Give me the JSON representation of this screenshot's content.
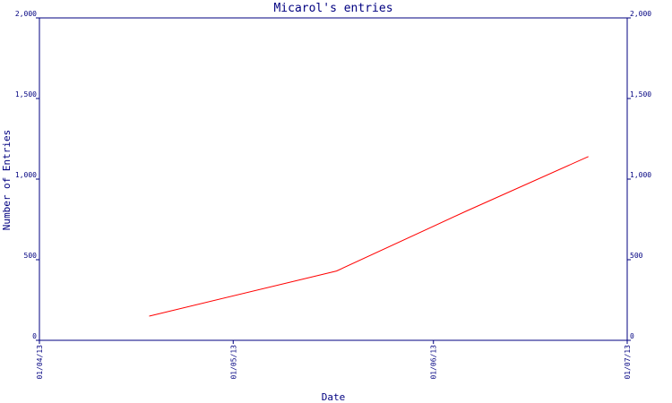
{
  "colors": {
    "axis": "#000080",
    "series_line": "#ff0000",
    "background": "#ffffff"
  },
  "chart_data": {
    "type": "line",
    "title": "Micarol's entries",
    "xlabel": "Date",
    "ylabel": "Number of Entries",
    "xlim": [
      "2013-04-01",
      "2013-07-01"
    ],
    "ylim": [
      0,
      2000
    ],
    "grid": false,
    "legend": "none",
    "x_ticks": [
      "2013-04-01",
      "2013-05-01",
      "2013-06-01",
      "2013-07-01"
    ],
    "x_tick_labels": [
      "01/04/13",
      "01/05/13",
      "01/06/13",
      "01/07/13"
    ],
    "y_ticks": [
      0,
      500,
      1000,
      1500,
      2000
    ],
    "y_tick_labels": [
      "0",
      "500",
      "1,000",
      "1,500",
      "2,000"
    ],
    "series": [
      {
        "color": "#ff0000",
        "points": [
          {
            "x": "2013-04-18",
            "y": 150
          },
          {
            "x": "2013-05-17",
            "y": 430
          },
          {
            "x": "2013-06-06",
            "y": 800
          },
          {
            "x": "2013-06-25",
            "y": 1140
          }
        ]
      }
    ]
  }
}
